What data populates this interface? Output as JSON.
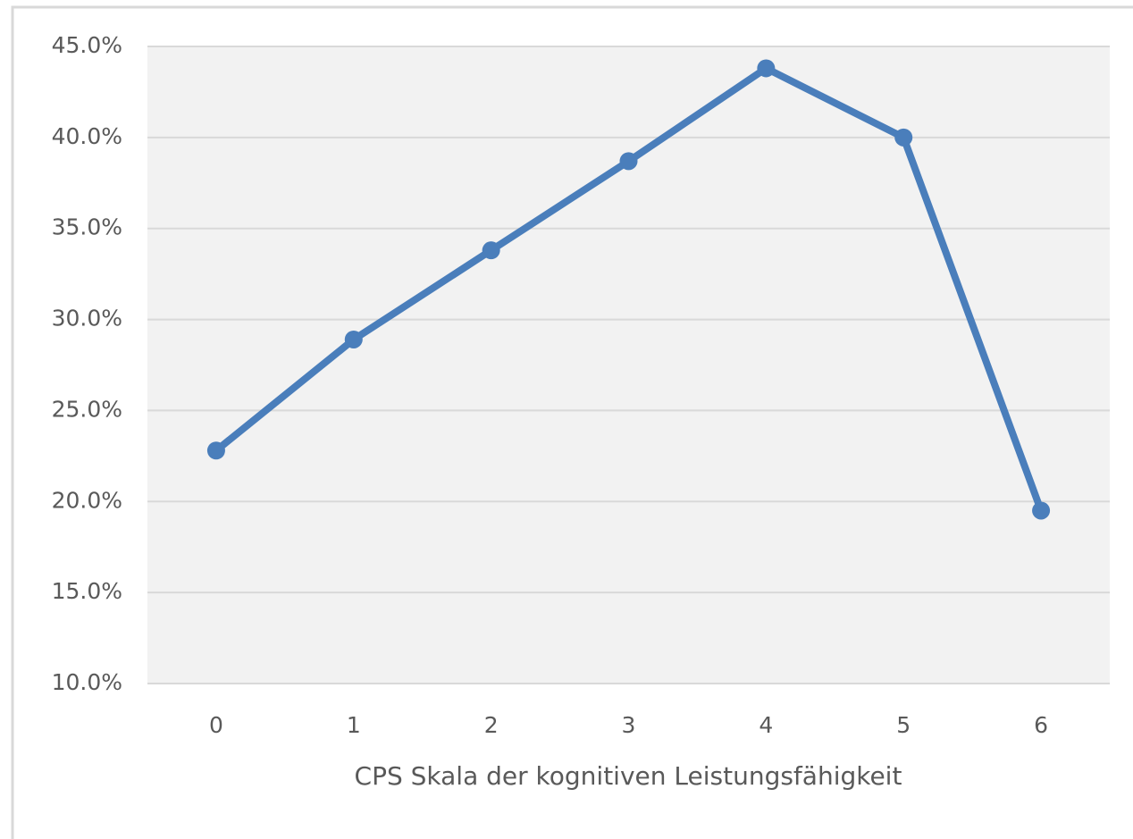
{
  "chart_data": {
    "type": "line",
    "x_label": "CPS Skala der kognitiven Leistungsfähigkeit",
    "categories": [
      "0",
      "1",
      "2",
      "3",
      "4",
      "5",
      "6"
    ],
    "values": [
      22.8,
      28.9,
      33.8,
      38.7,
      43.8,
      40.0,
      19.5
    ],
    "color": "#4a7ebb",
    "ylim": [
      10,
      45
    ],
    "yticks": [
      {
        "value": 10,
        "label": "10.0%"
      },
      {
        "value": 15,
        "label": "15.0%"
      },
      {
        "value": 20,
        "label": "20.0%"
      },
      {
        "value": 25,
        "label": "25.0%"
      },
      {
        "value": 30,
        "label": "30.0%"
      },
      {
        "value": 35,
        "label": "35.0%"
      },
      {
        "value": 40,
        "label": "40.0%"
      },
      {
        "value": 45,
        "label": "45.0%"
      }
    ],
    "grid": true
  }
}
